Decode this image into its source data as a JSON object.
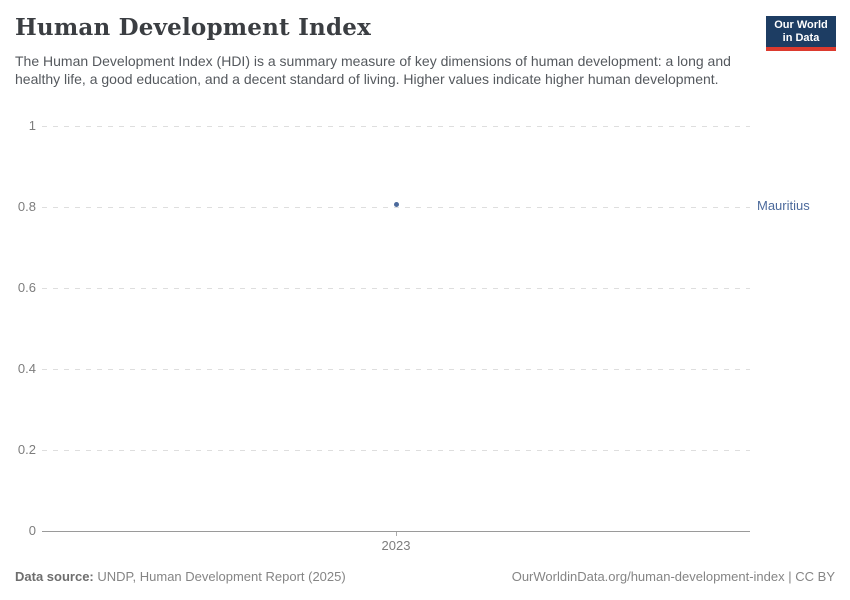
{
  "header": {
    "title": "Human Development Index",
    "subtitle": "The Human Development Index (HDI) is a summary measure of key dimensions of human development: a long and healthy life, a good education, and a decent standard of living. Higher values indicate higher human development.",
    "logo": {
      "line1": "Our World",
      "line2": "in Data",
      "bg_color": "#1d3d63",
      "accent_color": "#dc3a2e"
    }
  },
  "chart_data": {
    "type": "scatter",
    "title": "Human Development Index",
    "x": [
      2023
    ],
    "xticks": [
      "2023"
    ],
    "series": [
      {
        "name": "Mauritius",
        "values": [
          0.806
        ],
        "color": "#4C6A9C"
      }
    ],
    "xlabel": "",
    "ylabel": "",
    "ylim": [
      0,
      1
    ],
    "yticks": [
      0,
      0.2,
      0.4,
      0.6,
      0.8,
      1
    ],
    "grid": true,
    "gridline_color": "#dedede",
    "axis_color": "#9a9a9a",
    "tick_label_color": "#7d7d7d",
    "legend_position": "right-of-plot"
  },
  "footer": {
    "datasource_label": "Data source:",
    "datasource_value": "UNDP, Human Development Report (2025)",
    "url": "OurWorldinData.org/human-development-index",
    "separator": "|",
    "license": "CC BY"
  }
}
